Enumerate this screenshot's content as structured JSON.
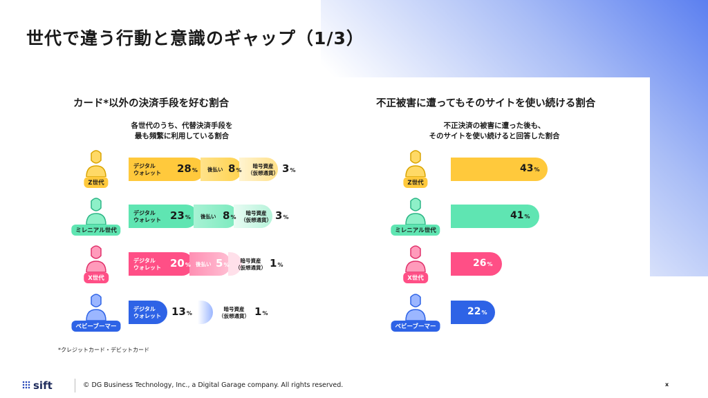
{
  "title": "世代で違う行動と意識のギャップ（1/3）",
  "left": {
    "title": "カード*以外の決済手段を好む割合",
    "subtitle": "各世代のうち、代替決済手段を\n最も頻繁に利用している割合",
    "labels": {
      "wallet": "デジタル\nウォレット",
      "bnpl": "後払い",
      "crypto": "暗号資産\n（仮想通貨）"
    },
    "rows": [
      {
        "gen": "Z世代",
        "wallet": "28",
        "bnpl": "8",
        "crypto": "3"
      },
      {
        "gen": "ミレニアル世代",
        "wallet": "23",
        "bnpl": "8",
        "crypto": "3"
      },
      {
        "gen": "X世代",
        "wallet": "20",
        "bnpl": "5",
        "crypto": "1"
      },
      {
        "gen": "ベビーブーマー",
        "wallet": "13",
        "crypto": "1"
      }
    ],
    "footnote": "*クレジットカード・デビットカード"
  },
  "right": {
    "title": "不正被害に遭ってもそのサイトを使い続ける割合",
    "subtitle": "不正決済の被害に遭った後も、\nそのサイトを使い続けると回答した割合",
    "rows": [
      {
        "gen": "Z世代",
        "value": "43"
      },
      {
        "gen": "ミレニアル世代",
        "value": "41"
      },
      {
        "gen": "X世代",
        "value": "26"
      },
      {
        "gen": "ベビーブーマー",
        "value": "22"
      }
    ]
  },
  "pct": "%",
  "colors": {
    "z": "#ffc93c",
    "mil": "#5fe5b2",
    "x": "#ff4f86",
    "boomer": "#2e63e6"
  },
  "icons": [
    "person-icon"
  ],
  "footer": {
    "logo": "sift",
    "copyright": "© DG Business Technology, Inc., a Digital Garage company. All rights reserved.",
    "page": "x"
  }
}
